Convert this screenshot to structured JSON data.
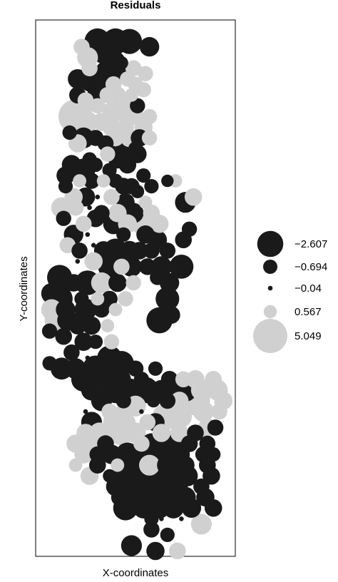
{
  "chart_data": {
    "type": "scatter",
    "subtype": "bubble",
    "title": "Residuals",
    "xlabel": "X-coordinates",
    "ylabel": "Y-coordinates",
    "grid": false,
    "axis_ticks": false,
    "legend_position": "right",
    "colors": {
      "negative": "#1a1a1a",
      "positive": "#d0d0d0",
      "axes": "#000000"
    },
    "legend": [
      {
        "label": "−2.607",
        "value": -2.607
      },
      {
        "label": "−0.694",
        "value": -0.694
      },
      {
        "label": "−0.04",
        "value": -0.04
      },
      {
        "label": "0.567",
        "value": 0.567
      },
      {
        "label": "5.049",
        "value": 5.049
      }
    ],
    "xlim": [
      0,
      100
    ],
    "ylim": [
      0,
      100
    ],
    "points": [
      {
        "x": 31,
        "y": 96,
        "r": -2.6
      },
      {
        "x": 40,
        "y": 96,
        "r": -2.6
      },
      {
        "x": 47,
        "y": 96,
        "r": -2.4
      },
      {
        "x": 57,
        "y": 95,
        "r": -1.4
      },
      {
        "x": 23,
        "y": 95,
        "r": 0.9
      },
      {
        "x": 34,
        "y": 94,
        "r": -2.0
      },
      {
        "x": 26,
        "y": 93,
        "r": 1.6
      },
      {
        "x": 43,
        "y": 92,
        "r": -0.6
      },
      {
        "x": 39,
        "y": 92,
        "r": -2.3
      },
      {
        "x": 27,
        "y": 91,
        "r": 0.9
      },
      {
        "x": 36,
        "y": 90,
        "r": -2.6
      },
      {
        "x": 49,
        "y": 91,
        "r": 0.9
      },
      {
        "x": 21,
        "y": 89,
        "r": -1.4
      },
      {
        "x": 28,
        "y": 89,
        "r": -2.6
      },
      {
        "x": 42,
        "y": 90,
        "r": -1.0
      },
      {
        "x": 46,
        "y": 89,
        "r": 0.8
      },
      {
        "x": 55,
        "y": 90,
        "r": 0.8
      },
      {
        "x": 34,
        "y": 88,
        "r": -1.1
      },
      {
        "x": 39,
        "y": 88,
        "r": 0.9
      },
      {
        "x": 50,
        "y": 88,
        "r": 0.8
      },
      {
        "x": 21,
        "y": 86,
        "r": -1.0
      },
      {
        "x": 31,
        "y": 86,
        "r": -1.6
      },
      {
        "x": 36,
        "y": 86,
        "r": 0.9
      },
      {
        "x": 41,
        "y": 86,
        "r": 1.0
      },
      {
        "x": 48,
        "y": 86,
        "r": 0.6
      },
      {
        "x": 54,
        "y": 87,
        "r": 0.8
      },
      {
        "x": 25,
        "y": 85,
        "r": 0.9
      },
      {
        "x": 46,
        "y": 84,
        "r": 0.9
      },
      {
        "x": 51,
        "y": 84,
        "r": -0.8
      },
      {
        "x": 20,
        "y": 82,
        "r": 5.0
      },
      {
        "x": 31,
        "y": 84,
        "r": 0.8
      },
      {
        "x": 38,
        "y": 83,
        "r": 1.2
      },
      {
        "x": 43,
        "y": 83,
        "r": 1.6
      },
      {
        "x": 50,
        "y": 82,
        "r": 1.0
      },
      {
        "x": 57,
        "y": 82,
        "r": 0.8
      },
      {
        "x": 26,
        "y": 81,
        "r": 1.6
      },
      {
        "x": 33,
        "y": 81,
        "r": 1.2
      },
      {
        "x": 38,
        "y": 80,
        "r": 1.2
      },
      {
        "x": 45,
        "y": 80,
        "r": 1.0
      },
      {
        "x": 54,
        "y": 80,
        "r": 1.2
      },
      {
        "x": 17,
        "y": 79,
        "r": -0.7
      },
      {
        "x": 24,
        "y": 78,
        "r": -1.6
      },
      {
        "x": 30,
        "y": 78,
        "r": -0.9
      },
      {
        "x": 40,
        "y": 78,
        "r": 1.0
      },
      {
        "x": 47,
        "y": 78,
        "r": 1.2
      },
      {
        "x": 52,
        "y": 78,
        "r": -1.1
      },
      {
        "x": 57,
        "y": 78,
        "r": 0.8
      },
      {
        "x": 21,
        "y": 77,
        "r": 1.2
      },
      {
        "x": 35,
        "y": 77,
        "r": -0.9
      },
      {
        "x": 43,
        "y": 76,
        "r": -2.0
      },
      {
        "x": 50,
        "y": 76,
        "r": -0.7
      },
      {
        "x": 27,
        "y": 74,
        "r": -0.7
      },
      {
        "x": 36,
        "y": 75,
        "r": 0.8
      },
      {
        "x": 41,
        "y": 74,
        "r": -1.2
      },
      {
        "x": 51,
        "y": 75,
        "r": -1.2
      },
      {
        "x": 18,
        "y": 73,
        "r": -1.4
      },
      {
        "x": 24,
        "y": 72,
        "r": -2.0
      },
      {
        "x": 30,
        "y": 73,
        "r": -0.7
      },
      {
        "x": 37,
        "y": 72,
        "r": -0.7
      },
      {
        "x": 46,
        "y": 73,
        "r": -1.1
      },
      {
        "x": 15,
        "y": 71,
        "r": -1.2
      },
      {
        "x": 22,
        "y": 70,
        "r": 0.6
      },
      {
        "x": 28,
        "y": 70,
        "r": -0.9
      },
      {
        "x": 34,
        "y": 70,
        "r": 0.6
      },
      {
        "x": 40,
        "y": 70,
        "r": -0.7
      },
      {
        "x": 54,
        "y": 71,
        "r": -0.7
      },
      {
        "x": 70,
        "y": 70,
        "r": 0.6
      },
      {
        "x": 15,
        "y": 69,
        "r": -0.7
      },
      {
        "x": 44,
        "y": 69,
        "r": -1.0
      },
      {
        "x": 48,
        "y": 69,
        "r": -0.9
      },
      {
        "x": 51,
        "y": 68,
        "r": -0.6
      },
      {
        "x": 58,
        "y": 69,
        "r": -0.7
      },
      {
        "x": 66,
        "y": 70,
        "r": -0.5
      },
      {
        "x": 79,
        "y": 67,
        "r": 1.1
      },
      {
        "x": 75,
        "y": 66,
        "r": -1.6
      },
      {
        "x": 19,
        "y": 67,
        "r": 1.2
      },
      {
        "x": 25,
        "y": 67,
        "r": -1.3
      },
      {
        "x": 31,
        "y": 67,
        "r": -0.04
      },
      {
        "x": 38,
        "y": 67,
        "r": 0.9
      },
      {
        "x": 45,
        "y": 66,
        "r": -1.2
      },
      {
        "x": 55,
        "y": 66,
        "r": 0.6
      },
      {
        "x": 13,
        "y": 65,
        "r": 1.6
      },
      {
        "x": 20,
        "y": 65,
        "r": 0.9
      },
      {
        "x": 27,
        "y": 65,
        "r": -0.04
      },
      {
        "x": 33,
        "y": 64,
        "r": -0.9
      },
      {
        "x": 41,
        "y": 64,
        "r": 1.2
      },
      {
        "x": 49,
        "y": 64,
        "r": -1.5
      },
      {
        "x": 58,
        "y": 64,
        "r": 1.0
      },
      {
        "x": 14,
        "y": 63,
        "r": -0.8
      },
      {
        "x": 24,
        "y": 62,
        "r": 0.9
      },
      {
        "x": 30,
        "y": 63,
        "r": -1.1
      },
      {
        "x": 39,
        "y": 62,
        "r": -1.6
      },
      {
        "x": 46,
        "y": 62,
        "r": 1.3
      },
      {
        "x": 53,
        "y": 62,
        "r": 1.6
      },
      {
        "x": 62,
        "y": 62,
        "r": 1.2
      },
      {
        "x": 77,
        "y": 61,
        "r": -0.8
      },
      {
        "x": 19,
        "y": 60,
        "r": -1.4
      },
      {
        "x": 26,
        "y": 60,
        "r": -0.04
      },
      {
        "x": 44,
        "y": 60,
        "r": -0.7
      },
      {
        "x": 55,
        "y": 60,
        "r": -1.2
      },
      {
        "x": 61,
        "y": 59,
        "r": -1.3
      },
      {
        "x": 74,
        "y": 59,
        "r": -1.0
      },
      {
        "x": 16,
        "y": 58,
        "r": 0.9
      },
      {
        "x": 22,
        "y": 57,
        "r": -0.9
      },
      {
        "x": 29,
        "y": 58,
        "r": -0.04
      },
      {
        "x": 34,
        "y": 57,
        "r": -1.3
      },
      {
        "x": 40,
        "y": 57,
        "r": -2.2
      },
      {
        "x": 47,
        "y": 57,
        "r": -1.4
      },
      {
        "x": 52,
        "y": 57,
        "r": -1.1
      },
      {
        "x": 58,
        "y": 57,
        "r": -0.9
      },
      {
        "x": 66,
        "y": 57,
        "r": -0.9
      },
      {
        "x": 21,
        "y": 55,
        "r": -0.04
      },
      {
        "x": 29,
        "y": 55,
        "r": 1.2
      },
      {
        "x": 37,
        "y": 54,
        "r": -2.0
      },
      {
        "x": 43,
        "y": 54,
        "r": 0.9
      },
      {
        "x": 48,
        "y": 54,
        "r": -1.5
      },
      {
        "x": 56,
        "y": 54,
        "r": -1.0
      },
      {
        "x": 63,
        "y": 54,
        "r": -1.6
      },
      {
        "x": 73,
        "y": 54,
        "r": -2.2
      },
      {
        "x": 12,
        "y": 52,
        "r": -2.4
      },
      {
        "x": 19,
        "y": 51,
        "r": -1.1
      },
      {
        "x": 26,
        "y": 51,
        "r": -2.3
      },
      {
        "x": 33,
        "y": 51,
        "r": 1.6
      },
      {
        "x": 41,
        "y": 51,
        "r": -1.2
      },
      {
        "x": 49,
        "y": 51,
        "r": 0.8
      },
      {
        "x": 61,
        "y": 52,
        "r": -0.8
      },
      {
        "x": 67,
        "y": 51,
        "r": -1.4
      },
      {
        "x": 8,
        "y": 49,
        "r": -1.6
      },
      {
        "x": 12,
        "y": 48,
        "r": -2.6
      },
      {
        "x": 23,
        "y": 48,
        "r": -0.7
      },
      {
        "x": 31,
        "y": 48,
        "r": 0.6
      },
      {
        "x": 37,
        "y": 48,
        "r": -0.9
      },
      {
        "x": 45,
        "y": 48,
        "r": 0.8
      },
      {
        "x": 66,
        "y": 48,
        "r": -2.1
      },
      {
        "x": 8,
        "y": 46,
        "r": 1.6
      },
      {
        "x": 15,
        "y": 46,
        "r": -1.4
      },
      {
        "x": 25,
        "y": 46,
        "r": -1.8
      },
      {
        "x": 33,
        "y": 46,
        "r": -0.9
      },
      {
        "x": 40,
        "y": 46,
        "r": 0.6
      },
      {
        "x": 68,
        "y": 45,
        "r": -1.1
      },
      {
        "x": 10,
        "y": 44,
        "r": 1.8
      },
      {
        "x": 16,
        "y": 44,
        "r": -1.6
      },
      {
        "x": 21,
        "y": 43,
        "r": -1.1
      },
      {
        "x": 28,
        "y": 43,
        "r": -1.2
      },
      {
        "x": 36,
        "y": 43,
        "r": 0.6
      },
      {
        "x": 62,
        "y": 44,
        "r": -2.6
      },
      {
        "x": 7,
        "y": 42,
        "r": -0.8
      },
      {
        "x": 14,
        "y": 41,
        "r": -1.0
      },
      {
        "x": 24,
        "y": 40,
        "r": -1.2
      },
      {
        "x": 30,
        "y": 40,
        "r": -0.7
      },
      {
        "x": 38,
        "y": 40,
        "r": 0.8
      },
      {
        "x": 18,
        "y": 38,
        "r": -0.9
      },
      {
        "x": 26,
        "y": 37,
        "r": -0.04
      },
      {
        "x": 37,
        "y": 37,
        "r": -2.3
      },
      {
        "x": 43,
        "y": 36,
        "r": -2.3
      },
      {
        "x": 7,
        "y": 36,
        "r": -0.7
      },
      {
        "x": 13,
        "y": 35,
        "r": -1.8
      },
      {
        "x": 20,
        "y": 35,
        "r": -1.6
      },
      {
        "x": 30,
        "y": 35,
        "r": -2.6
      },
      {
        "x": 50,
        "y": 35,
        "r": -0.9
      },
      {
        "x": 60,
        "y": 35,
        "r": -0.7
      },
      {
        "x": 24,
        "y": 33,
        "r": -2.3
      },
      {
        "x": 36,
        "y": 33,
        "r": -2.3
      },
      {
        "x": 43,
        "y": 33,
        "r": -1.3
      },
      {
        "x": 53,
        "y": 33,
        "r": -0.8
      },
      {
        "x": 67,
        "y": 33,
        "r": -1.0
      },
      {
        "x": 74,
        "y": 33,
        "r": 0.9
      },
      {
        "x": 80,
        "y": 33,
        "r": 1.2
      },
      {
        "x": 89,
        "y": 33,
        "r": 1.0
      },
      {
        "x": 28,
        "y": 31,
        "r": -1.6
      },
      {
        "x": 40,
        "y": 31,
        "r": -2.6
      },
      {
        "x": 47,
        "y": 31,
        "r": -2.0
      },
      {
        "x": 55,
        "y": 31,
        "r": -2.6
      },
      {
        "x": 63,
        "y": 31,
        "r": -1.5
      },
      {
        "x": 69,
        "y": 31,
        "r": -2.3
      },
      {
        "x": 75,
        "y": 31,
        "r": -2.0
      },
      {
        "x": 83,
        "y": 31,
        "r": 1.6
      },
      {
        "x": 91,
        "y": 31,
        "r": 1.6
      },
      {
        "x": 33,
        "y": 29,
        "r": -1.6
      },
      {
        "x": 44,
        "y": 29,
        "r": -0.8
      },
      {
        "x": 50,
        "y": 28,
        "r": 1.6
      },
      {
        "x": 59,
        "y": 29,
        "r": -0.6
      },
      {
        "x": 66,
        "y": 29,
        "r": -0.9
      },
      {
        "x": 72,
        "y": 29,
        "r": 1.2
      },
      {
        "x": 80,
        "y": 29,
        "r": 3.4
      },
      {
        "x": 94,
        "y": 29,
        "r": 1.2
      },
      {
        "x": 25,
        "y": 27,
        "r": -0.04
      },
      {
        "x": 37,
        "y": 27,
        "r": 0.9
      },
      {
        "x": 44,
        "y": 27,
        "r": 0.9
      },
      {
        "x": 53,
        "y": 27,
        "r": -0.04
      },
      {
        "x": 65,
        "y": 26,
        "r": 2.6
      },
      {
        "x": 73,
        "y": 26,
        "r": 1.6
      },
      {
        "x": 84,
        "y": 27,
        "r": 1.6
      },
      {
        "x": 92,
        "y": 27,
        "r": 0.9
      },
      {
        "x": 28,
        "y": 25,
        "r": -1.6
      },
      {
        "x": 39,
        "y": 25,
        "r": 1.6
      },
      {
        "x": 46,
        "y": 25,
        "r": 0.9
      },
      {
        "x": 56,
        "y": 25,
        "r": 0.9
      },
      {
        "x": 60,
        "y": 25,
        "r": -1.2
      },
      {
        "x": 86,
        "y": 24,
        "r": 1.2
      },
      {
        "x": 90,
        "y": 24,
        "r": -0.9
      },
      {
        "x": 25,
        "y": 23,
        "r": 1.2
      },
      {
        "x": 32,
        "y": 23,
        "r": 1.6
      },
      {
        "x": 43,
        "y": 23,
        "r": 2.3
      },
      {
        "x": 50,
        "y": 23,
        "r": 1.6
      },
      {
        "x": 63,
        "y": 23,
        "r": 1.2
      },
      {
        "x": 72,
        "y": 23,
        "r": 1.2
      },
      {
        "x": 80,
        "y": 23,
        "r": -1.0
      },
      {
        "x": 20,
        "y": 21,
        "r": 1.2
      },
      {
        "x": 29,
        "y": 21,
        "r": 1.6
      },
      {
        "x": 35,
        "y": 21,
        "r": -1.0
      },
      {
        "x": 53,
        "y": 21,
        "r": 0.9
      },
      {
        "x": 58,
        "y": 21,
        "r": -1.6
      },
      {
        "x": 69,
        "y": 21,
        "r": -2.0
      },
      {
        "x": 77,
        "y": 21,
        "r": -1.0
      },
      {
        "x": 86,
        "y": 21,
        "r": -0.9
      },
      {
        "x": 24,
        "y": 19,
        "r": 1.2
      },
      {
        "x": 31,
        "y": 19,
        "r": -0.9
      },
      {
        "x": 38,
        "y": 19,
        "r": -1.4
      },
      {
        "x": 46,
        "y": 19,
        "r": -2.1
      },
      {
        "x": 55,
        "y": 19,
        "r": -2.6
      },
      {
        "x": 63,
        "y": 19,
        "r": -2.6
      },
      {
        "x": 72,
        "y": 19,
        "r": -1.6
      },
      {
        "x": 84,
        "y": 19,
        "r": -0.9
      },
      {
        "x": 89,
        "y": 19,
        "r": -0.7
      },
      {
        "x": 20,
        "y": 17,
        "r": 0.6
      },
      {
        "x": 31,
        "y": 17,
        "r": -1.0
      },
      {
        "x": 41,
        "y": 17,
        "r": 0.6
      },
      {
        "x": 47,
        "y": 17,
        "r": -2.0
      },
      {
        "x": 57,
        "y": 17,
        "r": 1.6
      },
      {
        "x": 66,
        "y": 17,
        "r": -1.6
      },
      {
        "x": 75,
        "y": 17,
        "r": -1.2
      },
      {
        "x": 86,
        "y": 17,
        "r": -1.0
      },
      {
        "x": 27,
        "y": 15,
        "r": 1.2
      },
      {
        "x": 37,
        "y": 15,
        "r": -0.6
      },
      {
        "x": 45,
        "y": 15,
        "r": -2.6
      },
      {
        "x": 53,
        "y": 15,
        "r": -2.3
      },
      {
        "x": 63,
        "y": 15,
        "r": -2.6
      },
      {
        "x": 70,
        "y": 15,
        "r": -1.6
      },
      {
        "x": 76,
        "y": 15,
        "r": -1.6
      },
      {
        "x": 88,
        "y": 15,
        "r": -1.1
      },
      {
        "x": 40,
        "y": 13,
        "r": -1.3
      },
      {
        "x": 47,
        "y": 13,
        "r": -2.6
      },
      {
        "x": 56,
        "y": 13,
        "r": -2.6
      },
      {
        "x": 63,
        "y": 13,
        "r": -2.0
      },
      {
        "x": 71,
        "y": 13,
        "r": -1.6
      },
      {
        "x": 83,
        "y": 13,
        "r": -0.9
      },
      {
        "x": 42,
        "y": 11,
        "r": -1.0
      },
      {
        "x": 49,
        "y": 11,
        "r": -2.6
      },
      {
        "x": 59,
        "y": 11,
        "r": -2.3
      },
      {
        "x": 66,
        "y": 11,
        "r": -2.2
      },
      {
        "x": 75,
        "y": 11,
        "r": -1.6
      },
      {
        "x": 85,
        "y": 11,
        "r": -1.2
      },
      {
        "x": 45,
        "y": 9,
        "r": -2.3
      },
      {
        "x": 54,
        "y": 9,
        "r": -1.6
      },
      {
        "x": 62,
        "y": 9,
        "r": -1.6
      },
      {
        "x": 69,
        "y": 9,
        "r": -1.6
      },
      {
        "x": 78,
        "y": 9,
        "r": -1.4
      },
      {
        "x": 89,
        "y": 9,
        "r": -1.1
      },
      {
        "x": 58,
        "y": 7,
        "r": -0.7
      },
      {
        "x": 63,
        "y": 7,
        "r": -0.04
      },
      {
        "x": 73,
        "y": 7,
        "r": -0.04
      },
      {
        "x": 83,
        "y": 6,
        "r": 1.6
      },
      {
        "x": 58,
        "y": 5,
        "r": -0.9
      },
      {
        "x": 66,
        "y": 4,
        "r": -0.7
      },
      {
        "x": 48,
        "y": 2,
        "r": -1.6
      },
      {
        "x": 60,
        "y": 1,
        "r": -1.2
      },
      {
        "x": 71,
        "y": 1,
        "r": 1.0
      }
    ]
  }
}
